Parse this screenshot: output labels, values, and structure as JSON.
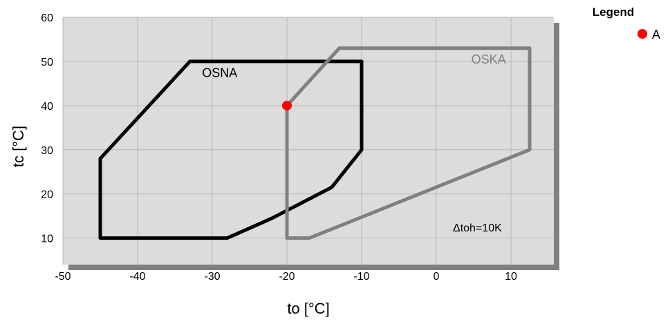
{
  "chart_data": {
    "type": "line",
    "xlabel": "to [°C]",
    "ylabel": "tc [°C]",
    "xlim": [
      -50,
      15
    ],
    "ylim": [
      4,
      60
    ],
    "x_ticks": [
      -50,
      -40,
      -30,
      -20,
      -10,
      0,
      10
    ],
    "y_ticks": [
      10,
      20,
      30,
      40,
      50,
      60
    ],
    "grid": true,
    "background_color": "#dcdcdc",
    "series": [
      {
        "name": "OSNA",
        "color": "#000000",
        "closed": true,
        "points": [
          [
            -45,
            10
          ],
          [
            -28,
            10
          ],
          [
            -26,
            11.5
          ],
          [
            -22,
            14.5
          ],
          [
            -18,
            18
          ],
          [
            -14,
            21.5
          ],
          [
            -10,
            30
          ],
          [
            -10,
            50
          ],
          [
            -33,
            50
          ],
          [
            -45,
            28
          ],
          [
            -45,
            10
          ]
        ]
      },
      {
        "name": "OSKA",
        "color": "#808080",
        "closed": true,
        "points": [
          [
            -20,
            10
          ],
          [
            -17,
            10
          ],
          [
            12.5,
            30
          ],
          [
            12.5,
            53
          ],
          [
            -13,
            53
          ],
          [
            -20,
            40
          ],
          [
            -20,
            10
          ]
        ]
      }
    ],
    "region_labels": [
      {
        "text": "OSNA",
        "x": -29,
        "y": 46.5,
        "color": "#000000"
      },
      {
        "text": "OSKA",
        "x": 7,
        "y": 49.5,
        "color": "#808080"
      }
    ],
    "annotations": [
      {
        "text": "Δtoh=10K",
        "x": 5.5,
        "y": 11.5
      }
    ],
    "points": [
      {
        "label": "A",
        "x": -20,
        "y": 40,
        "color": "#ff0000"
      }
    ],
    "legend": {
      "title": "Legend",
      "placement": "top-right",
      "entries": [
        {
          "label": "A",
          "color": "#ff0000",
          "marker": "circle"
        }
      ]
    }
  }
}
